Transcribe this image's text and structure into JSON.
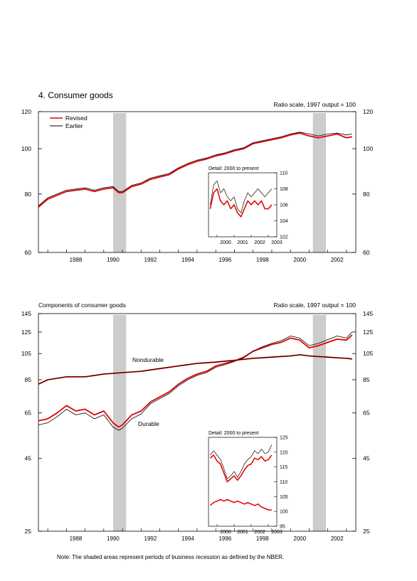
{
  "note": "Note: The shaded areas represent periods of business recession as defined by the NBER.",
  "colors": {
    "revised": "#e00000",
    "earlier": "#000000",
    "recession": "#cccccc"
  },
  "chart_data": [
    {
      "type": "line",
      "title": "4. Consumer goods",
      "scale_label": "Ratio scale, 1997 output = 100",
      "y_scale": "log",
      "ylim": [
        60,
        120
      ],
      "y_ticks": [
        "60",
        "80",
        "100",
        "120"
      ],
      "xlim": [
        1986.5,
        2003.5
      ],
      "x_ticks": [
        "1988",
        "1990",
        "1992",
        "1994",
        "1996",
        "1998",
        "2000",
        "2002"
      ],
      "recessions": [
        [
          1990.5,
          1991.2
        ],
        [
          2001.2,
          2001.9
        ]
      ],
      "legend": {
        "position": "top-left",
        "entries": [
          "Revised",
          "Earlier"
        ]
      },
      "series": [
        {
          "name": "Revised",
          "x": [
            1986.5,
            1987,
            1987.5,
            1988,
            1988.5,
            1989,
            1989.5,
            1990,
            1990.5,
            1990.8,
            1991,
            1991.5,
            1992,
            1992.5,
            1993,
            1993.5,
            1994,
            1994.5,
            1995,
            1995.5,
            1996,
            1996.5,
            1997,
            1997.5,
            1998,
            1998.5,
            1999,
            1999.5,
            2000,
            2000.5,
            2001,
            2001.5,
            2002,
            2002.5,
            2003,
            2003.3
          ],
          "values": [
            75,
            78,
            79.5,
            81,
            81.5,
            82,
            81,
            82,
            82.5,
            80.5,
            80.5,
            83,
            84,
            86,
            87,
            88,
            90.5,
            92.5,
            94,
            95,
            96.5,
            97.5,
            99,
            100,
            102.5,
            103.5,
            104.5,
            105.5,
            107,
            108,
            106.5,
            105.5,
            106.5,
            107.5,
            105.5,
            106
          ]
        },
        {
          "name": "Earlier",
          "x": [
            1986.5,
            1987,
            1987.5,
            1988,
            1988.5,
            1989,
            1989.5,
            1990,
            1990.5,
            1990.8,
            1991,
            1991.5,
            1992,
            1992.5,
            1993,
            1993.5,
            1994,
            1994.5,
            1995,
            1995.5,
            1996,
            1996.5,
            1997,
            1997.5,
            1998,
            1998.5,
            1999,
            1999.5,
            2000,
            2000.5,
            2001,
            2001.5,
            2002,
            2002.5,
            2003,
            2003.3
          ],
          "values": [
            75.5,
            78.5,
            80,
            81.5,
            82,
            82.5,
            81.5,
            82.5,
            83,
            81,
            81,
            83.5,
            84.5,
            86.5,
            87.5,
            88.5,
            91,
            93,
            94.5,
            95.5,
            97,
            98,
            99.5,
            100.5,
            103,
            104,
            105,
            106,
            107.5,
            108.5,
            107.5,
            106.5,
            107.5,
            108,
            107,
            107.5
          ]
        }
      ],
      "inset": {
        "title": "Detail: 2000 to present",
        "ylim": [
          102,
          110
        ],
        "y_ticks": [
          "102",
          "104",
          "106",
          "108",
          "110"
        ],
        "xlim": [
          1999.5,
          2003.5
        ],
        "x_ticks": [
          "2000",
          "2001",
          "2002",
          "2003"
        ],
        "series": [
          {
            "name": "Revised",
            "x": [
              1999.6,
              1999.8,
              2000.0,
              2000.2,
              2000.4,
              2000.6,
              2000.8,
              2001.0,
              2001.2,
              2001.4,
              2001.6,
              2001.8,
              2002.0,
              2002.2,
              2002.4,
              2002.6,
              2002.8,
              2003.0,
              2003.2
            ],
            "values": [
              105.5,
              107.5,
              108,
              106.5,
              106,
              106.5,
              105.5,
              106,
              105,
              104.5,
              105.5,
              106.5,
              106,
              106.5,
              106,
              106.5,
              105.5,
              105.5,
              106
            ]
          },
          {
            "name": "Earlier",
            "x": [
              1999.6,
              1999.8,
              2000.0,
              2000.2,
              2000.4,
              2000.6,
              2000.8,
              2001.0,
              2001.2,
              2001.4,
              2001.6,
              2001.8,
              2002.0,
              2002.2,
              2002.4,
              2002.6,
              2002.8,
              2003.0,
              2003.2
            ],
            "values": [
              106,
              108.5,
              109,
              107.5,
              108,
              107,
              106.5,
              107,
              105.5,
              105,
              106.5,
              107.5,
              107,
              107.5,
              108,
              107.5,
              107,
              107.5,
              108
            ]
          }
        ]
      }
    },
    {
      "type": "line",
      "title": "Components of consumer goods",
      "scale_label": "Ratio scale, 1997 output = 100",
      "y_scale": "log",
      "ylim": [
        25,
        145
      ],
      "y_ticks": [
        "25",
        "45",
        "65",
        "85",
        "105",
        "125",
        "145"
      ],
      "xlim": [
        1986.5,
        2003.5
      ],
      "x_ticks": [
        "1988",
        "1990",
        "1992",
        "1994",
        "1996",
        "1998",
        "2000",
        "2002"
      ],
      "recessions": [
        [
          1990.5,
          1991.2
        ],
        [
          2001.2,
          2001.9
        ]
      ],
      "labels": [
        "Nondurable",
        "Durable"
      ],
      "series": [
        {
          "name": "Nondurable Revised",
          "x": [
            1986.5,
            1987,
            1988,
            1989,
            1990,
            1991,
            1992,
            1993,
            1994,
            1995,
            1996,
            1997,
            1998,
            1999,
            2000,
            2000.5,
            2001,
            2001.5,
            2002,
            2002.5,
            2003,
            2003.3
          ],
          "values": [
            82,
            85,
            87,
            87,
            89,
            90,
            91,
            93,
            95,
            97,
            98,
            99.5,
            101,
            102,
            103,
            104,
            103,
            102.5,
            102,
            101.5,
            101,
            100.5
          ]
        },
        {
          "name": "Nondurable Earlier",
          "x": [
            1986.5,
            1987,
            1988,
            1989,
            1990,
            1991,
            1992,
            1993,
            1994,
            1995,
            1996,
            1997,
            1998,
            1999,
            2000,
            2000.5,
            2001,
            2001.5,
            2002,
            2002.5,
            2003,
            2003.3
          ],
          "values": [
            82,
            85,
            87,
            87,
            89,
            90,
            91,
            93,
            95,
            97,
            98,
            99.5,
            101,
            102,
            103,
            104,
            103,
            102.5,
            102,
            101.5,
            101,
            100.5
          ]
        },
        {
          "name": "Durable Revised",
          "x": [
            1986.5,
            1987,
            1987.5,
            1988,
            1988.5,
            1989,
            1989.5,
            1990,
            1990.5,
            1990.8,
            1991,
            1991.5,
            1992,
            1992.5,
            1993,
            1993.5,
            1994,
            1994.5,
            1995,
            1995.5,
            1996,
            1996.5,
            1997,
            1997.5,
            1998,
            1998.5,
            1999,
            1999.5,
            2000,
            2000.5,
            2001,
            2001.5,
            2002,
            2002.5,
            2003,
            2003.3
          ],
          "values": [
            61,
            62,
            65,
            69,
            66,
            67,
            64,
            66,
            60,
            58,
            59,
            64,
            66,
            71,
            74,
            77,
            82,
            86,
            89,
            91,
            95,
            97,
            99,
            102,
            107,
            110,
            113,
            115,
            119,
            117,
            110,
            112,
            115,
            118,
            117,
            122
          ]
        },
        {
          "name": "Durable Earlier",
          "x": [
            1986.5,
            1987,
            1987.5,
            1988,
            1988.5,
            1989,
            1989.5,
            1990,
            1990.5,
            1990.8,
            1991,
            1991.5,
            1992,
            1992.5,
            1993,
            1993.5,
            1994,
            1994.5,
            1995,
            1995.5,
            1996,
            1996.5,
            1997,
            1997.5,
            1998,
            1998.5,
            1999,
            1999.5,
            2000,
            2000.5,
            2001,
            2001.5,
            2002,
            2002.5,
            2003,
            2003.3
          ],
          "values": [
            59,
            60,
            63,
            67,
            64,
            65,
            62,
            64,
            58,
            56.5,
            57.5,
            62,
            64.5,
            70,
            73,
            76,
            81,
            85,
            88,
            90,
            94,
            96,
            98.5,
            101.5,
            107,
            111,
            114,
            116.5,
            121,
            119,
            112,
            114,
            117.5,
            121,
            119,
            125
          ]
        }
      ],
      "inset": {
        "title": "Detail: 2000 to present",
        "ylim": [
          95,
          125
        ],
        "y_ticks": [
          "95",
          "100",
          "105",
          "110",
          "115",
          "120",
          "125"
        ],
        "xlim": [
          1999.5,
          2003.5
        ],
        "x_ticks": [
          "2000",
          "2001",
          "2002",
          "2003"
        ],
        "series": [
          {
            "name": "Durable Revised",
            "x": [
              1999.6,
              1999.8,
              2000.0,
              2000.2,
              2000.4,
              2000.6,
              2000.8,
              2001.0,
              2001.2,
              2001.4,
              2001.6,
              2001.8,
              2002.0,
              2002.2,
              2002.4,
              2002.6,
              2002.8,
              2003.0,
              2003.2
            ],
            "values": [
              118,
              119,
              117,
              116,
              113,
              110,
              111,
              112,
              110.5,
              112,
              114,
              115.5,
              116,
              118,
              117.5,
              118.5,
              117,
              117.5,
              119
            ]
          },
          {
            "name": "Durable Earlier",
            "x": [
              1999.6,
              1999.8,
              2000.0,
              2000.2,
              2000.4,
              2000.6,
              2000.8,
              2001.0,
              2001.2,
              2001.4,
              2001.6,
              2001.8,
              2002.0,
              2002.2,
              2002.4,
              2002.6,
              2002.8,
              2003.0,
              2003.2
            ],
            "values": [
              119,
              120.5,
              119,
              117.5,
              114.5,
              111,
              112,
              113.5,
              111.5,
              113.5,
              116,
              117.5,
              118.5,
              120.5,
              119.5,
              121,
              119.5,
              120,
              122.5
            ]
          },
          {
            "name": "Nondurable Revised",
            "x": [
              1999.6,
              1999.8,
              2000.0,
              2000.2,
              2000.4,
              2000.6,
              2000.8,
              2001.0,
              2001.2,
              2001.4,
              2001.6,
              2001.8,
              2002.0,
              2002.2,
              2002.4,
              2002.6,
              2002.8,
              2003.0,
              2003.2
            ],
            "values": [
              102,
              103,
              103.5,
              104,
              103.5,
              104,
              103.5,
              103,
              103.5,
              103,
              102.5,
              103,
              102.5,
              102,
              102.5,
              101.5,
              101,
              100.5,
              100.5
            ]
          }
        ]
      }
    }
  ]
}
